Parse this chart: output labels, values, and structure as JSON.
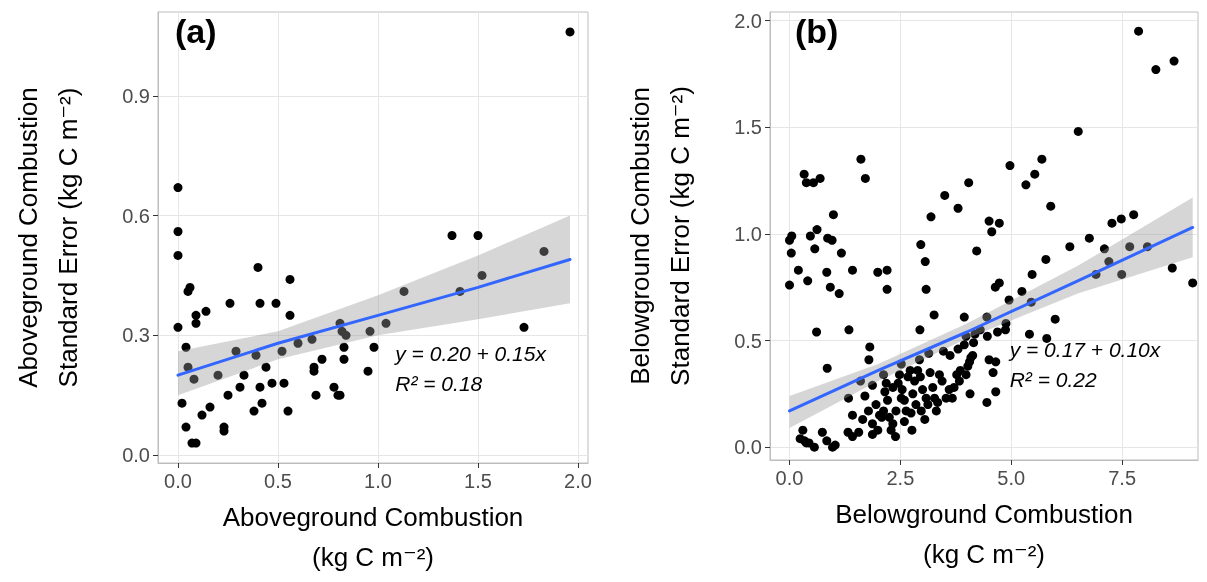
{
  "chart_data": [
    {
      "type": "scatter",
      "annotations": [
        "(a)",
        "y = 0.20 + 0.15x",
        "R² = 0.18"
      ],
      "xlabel": "Aboveground Combustion\n(kg C m⁻²)",
      "ylabel": "Aboveground Combustion\nStandard Error (kg C m⁻²)",
      "xlim": [
        -0.1,
        2.05
      ],
      "ylim": [
        -0.02,
        1.11
      ],
      "xticks": [
        {
          "value": 0,
          "label": "0.0"
        },
        {
          "value": 0.5,
          "label": "0.5"
        },
        {
          "value": 1,
          "label": "1.0"
        },
        {
          "value": 1.5,
          "label": "1.5"
        },
        {
          "value": 2,
          "label": "2.0"
        }
      ],
      "yticks": [
        {
          "value": 0,
          "label": "0.0"
        },
        {
          "value": 0.3,
          "label": "0.3"
        },
        {
          "value": 0.6,
          "label": "0.6"
        },
        {
          "value": 0.9,
          "label": "0.9"
        }
      ],
      "grid": true,
      "marker": "circle",
      "series": [
        {
          "color": "#000000",
          "x": [
            1.96,
            0,
            0,
            0,
            0,
            0.06,
            0.05,
            0.09,
            0.09,
            0.14,
            0.04,
            0.05,
            0.08,
            0.02,
            0.04,
            0.07,
            0.09,
            0.12,
            0.16,
            0.2,
            0.23,
            0.23,
            0.25,
            0.26,
            0.29,
            0.31,
            0.33,
            0.38,
            0.39,
            0.4,
            0.41,
            0.41,
            0.42,
            0.44,
            0.47,
            0.49,
            0.52,
            0.53,
            0.55,
            0.56,
            0.56,
            0.6,
            0.67,
            0.68,
            0.68,
            0.69,
            0.72,
            0.78,
            0.8,
            0.81,
            0.81,
            0.82,
            0.84,
            0.83,
            0.83,
            0.95,
            0.96,
            0.98,
            1.04,
            1.13,
            1.37,
            1.41,
            1.5,
            1.52,
            1.73,
            1.83
          ],
          "values": [
            1.06,
            0.67,
            0.56,
            0.5,
            0.32,
            0.42,
            0.41,
            0.35,
            0.33,
            0.36,
            0.27,
            0.22,
            0.19,
            0.13,
            0.07,
            0.03,
            0.03,
            0.1,
            0.12,
            0.2,
            0.07,
            0.06,
            0.15,
            0.38,
            0.26,
            0.17,
            0.2,
            0.11,
            0.25,
            0.47,
            0.38,
            0.17,
            0.13,
            0.22,
            0.18,
            0.38,
            0.26,
            0.18,
            0.11,
            0.44,
            0.35,
            0.28,
            0.29,
            0.22,
            0.21,
            0.15,
            0.24,
            0.17,
            0.15,
            0.15,
            0.33,
            0.31,
            0.3,
            0.27,
            0.24,
            0.21,
            0.31,
            0.27,
            0.33,
            0.41,
            0.55,
            0.41,
            0.55,
            0.45,
            0.32,
            0.51
          ]
        },
        {
          "type": "line",
          "marker": "none",
          "color": "#3366ff",
          "x": [
            0,
            0.5,
            1,
            1.5,
            1.96
          ],
          "values": [
            0.2,
            0.28,
            0.35,
            0.42,
            0.49
          ],
          "lower": [
            0.15,
            0.24,
            0.3,
            0.34,
            0.38
          ],
          "upper": [
            0.26,
            0.31,
            0.4,
            0.5,
            0.6
          ]
        }
      ]
    },
    {
      "type": "scatter",
      "annotations": [
        "(b)",
        "y = 0.17 + 0.10x",
        "R² = 0.22"
      ],
      "xlabel": "Belowground Combustion\n(kg C m⁻²)",
      "ylabel": "Belowground Combustion\nStandard Error (kg C m⁻²)",
      "xlim": [
        -0.44,
        9.21
      ],
      "ylim": [
        -0.06,
        2.04
      ],
      "xticks": [
        {
          "value": 0,
          "label": "0.0"
        },
        {
          "value": 2.5,
          "label": "2.5"
        },
        {
          "value": 5,
          "label": "5.0"
        },
        {
          "value": 7.5,
          "label": "7.5"
        }
      ],
      "yticks": [
        {
          "value": 0,
          "label": "0.0"
        },
        {
          "value": 0.5,
          "label": "0.5"
        },
        {
          "value": 1,
          "label": "1.0"
        },
        {
          "value": 1.5,
          "label": "1.5"
        },
        {
          "value": 2,
          "label": "2.0"
        }
      ],
      "grid": true,
      "marker": "circle",
      "series": [
        {
          "color": "#000000",
          "x": [
            7.87,
            8.26,
            8.67,
            6.51,
            1.61,
            1.71,
            0.33,
            0.38,
            0.54,
            0.69,
            4.97,
            5.33,
            5.53,
            5.69,
            5.89,
            4.04,
            3.5,
            3.8,
            3.19,
            4.5,
            4.73,
            4.56,
            7.27,
            7.48,
            7.76,
            6.76,
            0.99,
            0.62,
            0.47,
            0.05,
            0,
            0.86,
            0.96,
            2.96,
            6.32,
            7.1,
            7.67,
            8.07,
            0.04,
            0.57,
            1.17,
            4.22,
            7.2,
            8.63,
            9.09,
            7.49,
            6.91,
            5.78,
            5.47,
            5.24,
            5.45,
            4.95,
            4.73,
            4.64,
            0.2,
            0.41,
            0,
            0.84,
            0.92,
            1.12,
            1.42,
            1.99,
            2.2,
            2.2,
            3.06,
            3.08,
            3.26,
            3.94,
            5.99,
            5.41,
            5.8,
            4.45,
            4.88,
            4.87,
            4.69,
            4.46,
            0.61,
            1.34,
            2.94,
            1.81,
            1.79,
            0.85,
            1.33,
            1.42,
            1.32,
            1.42,
            1.56,
            0.3,
            0.24,
            0.34,
            0.44,
            0.56,
            0.74,
            0.84,
            0.97,
            1.03,
            0.38,
            1.6,
            1.7,
            1.87,
            1.65,
            1.78,
            1.87,
            1.87,
            1.95,
            2.03,
            2.12,
            2.18,
            2.15,
            2.21,
            2.12,
            2.25,
            2.29,
            2.39,
            2.33,
            2.4,
            2.45,
            2.52,
            2.54,
            2.59,
            2.63,
            2.59,
            2.67,
            2.72,
            2.78,
            2.76,
            2.85,
            2.89,
            2.93,
            2.95,
            3.0,
            2.97,
            3.08,
            3.12,
            3.14,
            3.17,
            3.23,
            3.27,
            3.34,
            3.38,
            3.44,
            3.47,
            3.53,
            3.62,
            3.67,
            3.71,
            3.77,
            3.8,
            3.83,
            3.85,
            3.94,
            3.98,
            4.02,
            4.06,
            4.07,
            4.09,
            4.13,
            4.15,
            3.98,
            4.3,
            4.18,
            4.5,
            4.59,
            4.65,
            4.65,
            4.45,
            2.48,
            2.33,
            2.08,
            1.99,
            2.82,
            2.74,
            3.31,
            3.6,
            3.05,
            2.52
          ],
          "values": [
            1.95,
            1.77,
            1.81,
            1.48,
            1.35,
            1.26,
            1.28,
            1.24,
            1.24,
            1.26,
            1.32,
            1.23,
            1.28,
            1.35,
            1.13,
            1.24,
            1.18,
            1.12,
            1.08,
            1.06,
            1.05,
            1.01,
            1.05,
            1.07,
            1.09,
            0.98,
            1.09,
            1.02,
            0.99,
            0.99,
            0.97,
            0.98,
            0.97,
            0.95,
            0.94,
            0.93,
            0.94,
            0.94,
            0.91,
            0.93,
            0.91,
            0.92,
            0.87,
            0.84,
            0.77,
            0.81,
            0.81,
            0.88,
            0.81,
            0.73,
            0.68,
            0.69,
            0.77,
            0.75,
            0.83,
            0.78,
            0.76,
            0.82,
            0.75,
            0.72,
            0.83,
            0.82,
            0.83,
            0.74,
            0.87,
            0.74,
            0.62,
            0.61,
            0.6,
            0.53,
            0.51,
            0.61,
            0.58,
            0.55,
            0.54,
            0.52,
            0.54,
            0.55,
            0.55,
            0.47,
            0.41,
            0.37,
            0.23,
            0.15,
            0.07,
            0.05,
            0.07,
            0.08,
            0.04,
            0.03,
            0.02,
            0.0,
            0.07,
            0.03,
            0.0,
            0.01,
            0.02,
            0.31,
            0.24,
            0.29,
            0.13,
            0.17,
            0.11,
            0.06,
            0.2,
            0.15,
            0.34,
            0.3,
            0.26,
            0.22,
            0.17,
            0.14,
            0.08,
            0.05,
            0.11,
            0.17,
            0.3,
            0.39,
            0.27,
            0.22,
            0.17,
            0.12,
            0.33,
            0.36,
            0.25,
            0.08,
            0.2,
            0.36,
            0.41,
            0.33,
            0.27,
            0.17,
            0.23,
            0.2,
            0.44,
            0.35,
            0.28,
            0.23,
            0.21,
            0.34,
            0.31,
            0.45,
            0.23,
            0.43,
            0.23,
            0.28,
            0.34,
            0.46,
            0.31,
            0.36,
            0.48,
            0.34,
            0.38,
            0.4,
            0.25,
            0.42,
            0.43,
            0.49,
            0.52,
            0.55,
            0.53,
            0.41,
            0.35,
            0.4,
            0.26,
            0.21,
            0.34,
            0.28,
            0.14,
            0.08,
            0.31,
            0.16,
            0.17,
            0.27,
            0.13,
            0.23
          ]
        },
        {
          "type": "line",
          "marker": "none",
          "color": "#3366ff",
          "x": [
            0,
            2,
            4,
            6.5,
            9.09
          ],
          "values": [
            0.17,
            0.36,
            0.54,
            0.78,
            1.03
          ],
          "lower": [
            0.09,
            0.31,
            0.51,
            0.72,
            0.89
          ],
          "upper": [
            0.24,
            0.39,
            0.58,
            0.85,
            1.17
          ]
        }
      ]
    }
  ]
}
